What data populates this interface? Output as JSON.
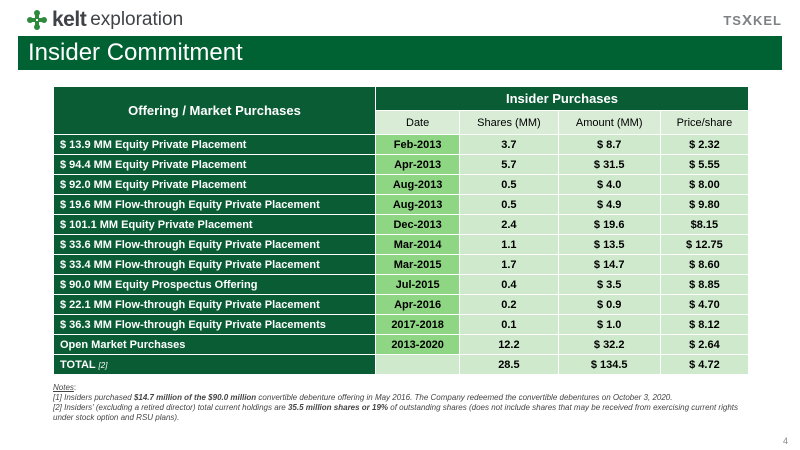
{
  "header": {
    "logo_bold": "kelt",
    "logo_light": "exploration",
    "tsx_prefix": "TS",
    "tsx_x": "X",
    "tsx_suffix": "KEL",
    "title": "Insider Commitment"
  },
  "table": {
    "offering_header": "Offering / Market Purchases",
    "insider_header": "Insider Purchases",
    "sub_headers": [
      "Date",
      "Shares (MM)",
      "Amount (MM)",
      "Price/share"
    ],
    "rows": [
      {
        "offering": "$ 13.9 MM Equity Private Placement",
        "date": "Feb-2013",
        "shares": "3.7",
        "amount": "$ 8.7",
        "price": "$ 2.32"
      },
      {
        "offering": "$ 94.4 MM Equity Private Placement",
        "date": "Apr-2013",
        "shares": "5.7",
        "amount": "$ 31.5",
        "price": "$ 5.55"
      },
      {
        "offering": "$ 92.0 MM Equity Private Placement",
        "date": "Aug-2013",
        "shares": "0.5",
        "amount": "$ 4.0",
        "price": "$ 8.00"
      },
      {
        "offering": "$ 19.6 MM Flow-through Equity Private Placement",
        "date": "Aug-2013",
        "shares": "0.5",
        "amount": "$ 4.9",
        "price": "$ 9.80"
      },
      {
        "offering": "$ 101.1 MM Equity Private Placement",
        "date": "Dec-2013",
        "shares": "2.4",
        "amount": "$ 19.6",
        "price": "$8.15"
      },
      {
        "offering": "$ 33.6 MM Flow-through Equity Private Placement",
        "date": "Mar-2014",
        "shares": "1.1",
        "amount": "$ 13.5",
        "price": "$ 12.75"
      },
      {
        "offering": "$ 33.4 MM Flow-through Equity Private Placement",
        "date": "Mar-2015",
        "shares": "1.7",
        "amount": "$ 14.7",
        "price": "$ 8.60"
      },
      {
        "offering": "$ 90.0 MM Equity Prospectus Offering",
        "date": "Jul-2015",
        "shares": "0.4",
        "amount": "$ 3.5",
        "price": "$ 8.85"
      },
      {
        "offering": "$ 22.1 MM Flow-through Equity Private Placement",
        "date": "Apr-2016",
        "shares": "0.2",
        "amount": "$ 0.9",
        "price": "$ 4.70"
      },
      {
        "offering": "$ 36.3 MM Flow-through Equity Private Placements",
        "date": "2017-2018",
        "shares": "0.1",
        "amount": "$ 1.0",
        "price": "$ 8.12"
      },
      {
        "offering": "Open Market Purchases",
        "date": "2013-2020",
        "shares": "12.2",
        "amount": "$ 32.2",
        "price": "$ 2.64"
      }
    ],
    "total": {
      "label": "TOTAL",
      "note": "[2]",
      "date": "",
      "shares": "28.5",
      "amount": "$ 134.5",
      "price": "$ 4.72"
    }
  },
  "notes": {
    "title": "Notes",
    "note1_a": "[1] Insiders purchased ",
    "note1_b": "$14.7 million of the $90.0 million",
    "note1_c": " convertible debenture offering in May 2016. The Company redeemed the convertible debentures on October 3, 2020.",
    "note2_a": "[2] Insiders' (excluding a retired director) total current holdings are ",
    "note2_b": "35.5 million shares or 19%",
    "note2_c": " of outstanding shares (does not include shares that may be received from exercising current rights under stock option and RSU plans)."
  },
  "page_number": "4",
  "colors": {
    "brand_green": "#006233",
    "row_green": "#0a5c34",
    "cell_light": "#cfe9cd",
    "cell_highlight": "#8fd684"
  }
}
